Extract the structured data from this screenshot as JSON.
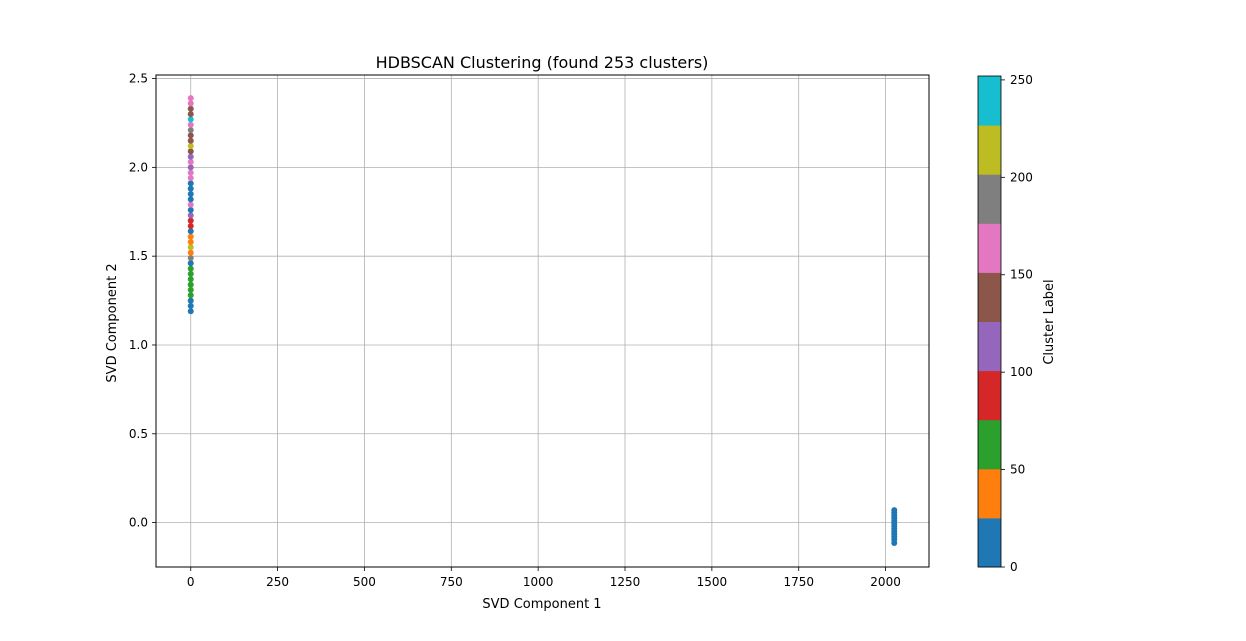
{
  "chart_data": {
    "type": "scatter",
    "title": "HDBSCAN Clustering (found 253 clusters)",
    "xlabel": "SVD Component 1",
    "ylabel": "SVD Component 2",
    "xlim": [
      -100,
      2125
    ],
    "ylim": [
      -0.25,
      2.52
    ],
    "x_ticks": [
      0,
      250,
      500,
      750,
      1000,
      1250,
      1500,
      1750,
      2000
    ],
    "y_ticks": [
      0.0,
      0.5,
      1.0,
      1.5,
      2.0,
      2.5
    ],
    "x_tick_labels": [
      "0",
      "250",
      "500",
      "750",
      "1000",
      "1250",
      "1500",
      "1750",
      "2000"
    ],
    "y_tick_labels": [
      "0.0",
      "0.5",
      "1.0",
      "1.5",
      "2.0",
      "2.5"
    ],
    "grid": true,
    "colormap": "tab10",
    "colorbar": {
      "label": "Cluster Label",
      "range": [
        0,
        252
      ],
      "ticks": [
        0,
        50,
        100,
        150,
        200,
        250
      ],
      "tick_labels": [
        "0",
        "50",
        "100",
        "150",
        "200",
        "250"
      ],
      "colors": [
        "#1f77b4",
        "#ff7f0e",
        "#2ca02c",
        "#d62728",
        "#9467bd",
        "#8c564b",
        "#e377c2",
        "#7f7f7f",
        "#bcbd22",
        "#17becf"
      ]
    },
    "series": [
      {
        "values": [
          {
            "x": 2025,
            "y": 0.07,
            "label": 0
          },
          {
            "x": 2025,
            "y": 0.055,
            "label": 0
          },
          {
            "x": 2025,
            "y": 0.04,
            "label": 0
          },
          {
            "x": 2025,
            "y": 0.025,
            "label": 0
          },
          {
            "x": 2025,
            "y": 0.01,
            "label": 0
          },
          {
            "x": 2025,
            "y": -0.005,
            "label": 0
          },
          {
            "x": 2025,
            "y": -0.02,
            "label": 0
          },
          {
            "x": 2025,
            "y": -0.035,
            "label": 0
          },
          {
            "x": 2025,
            "y": -0.05,
            "label": 0
          },
          {
            "x": 2025,
            "y": -0.065,
            "label": 0
          },
          {
            "x": 2025,
            "y": -0.08,
            "label": 0
          },
          {
            "x": 2025,
            "y": -0.095,
            "label": 0
          },
          {
            "x": 2025,
            "y": -0.115,
            "label": 0
          },
          {
            "x": 0,
            "y": 1.19,
            "label": 0
          },
          {
            "x": 0,
            "y": 1.22,
            "label": 5
          },
          {
            "x": 0,
            "y": 1.25,
            "label": 0
          },
          {
            "x": 0,
            "y": 1.28,
            "label": 55
          },
          {
            "x": 0,
            "y": 1.31,
            "label": 60
          },
          {
            "x": 0,
            "y": 1.34,
            "label": 58
          },
          {
            "x": 0,
            "y": 1.37,
            "label": 62
          },
          {
            "x": 0,
            "y": 1.4,
            "label": 52
          },
          {
            "x": 0,
            "y": 1.43,
            "label": 65
          },
          {
            "x": 0,
            "y": 1.46,
            "label": 10
          },
          {
            "x": 0,
            "y": 1.49,
            "label": 180
          },
          {
            "x": 0,
            "y": 1.52,
            "label": 35
          },
          {
            "x": 0,
            "y": 1.55,
            "label": 215
          },
          {
            "x": 0,
            "y": 1.58,
            "label": 40
          },
          {
            "x": 0,
            "y": 1.61,
            "label": 30
          },
          {
            "x": 0,
            "y": 1.64,
            "label": 8
          },
          {
            "x": 0,
            "y": 1.67,
            "label": 90
          },
          {
            "x": 0,
            "y": 1.7,
            "label": 95
          },
          {
            "x": 0,
            "y": 1.73,
            "label": 110
          },
          {
            "x": 0,
            "y": 1.76,
            "label": 12
          },
          {
            "x": 0,
            "y": 1.79,
            "label": 155
          },
          {
            "x": 0,
            "y": 1.82,
            "label": 3
          },
          {
            "x": 0,
            "y": 1.85,
            "label": 15
          },
          {
            "x": 0,
            "y": 1.88,
            "label": 18
          },
          {
            "x": 0,
            "y": 1.91,
            "label": 20
          },
          {
            "x": 0,
            "y": 1.94,
            "label": 160
          },
          {
            "x": 0,
            "y": 1.97,
            "label": 165
          },
          {
            "x": 0,
            "y": 2.0,
            "label": 120
          },
          {
            "x": 0,
            "y": 2.03,
            "label": 170
          },
          {
            "x": 0,
            "y": 2.06,
            "label": 105
          },
          {
            "x": 0,
            "y": 2.09,
            "label": 140
          },
          {
            "x": 0,
            "y": 2.12,
            "label": 205
          },
          {
            "x": 0,
            "y": 2.15,
            "label": 135
          },
          {
            "x": 0,
            "y": 2.18,
            "label": 145
          },
          {
            "x": 0,
            "y": 2.21,
            "label": 190
          },
          {
            "x": 0,
            "y": 2.24,
            "label": 175
          },
          {
            "x": 0,
            "y": 2.27,
            "label": 230
          },
          {
            "x": 0,
            "y": 2.3,
            "label": 150
          },
          {
            "x": 0,
            "y": 2.33,
            "label": 130
          },
          {
            "x": 0,
            "y": 2.36,
            "label": 168
          },
          {
            "x": 0,
            "y": 2.39,
            "label": 172
          }
        ]
      }
    ]
  }
}
